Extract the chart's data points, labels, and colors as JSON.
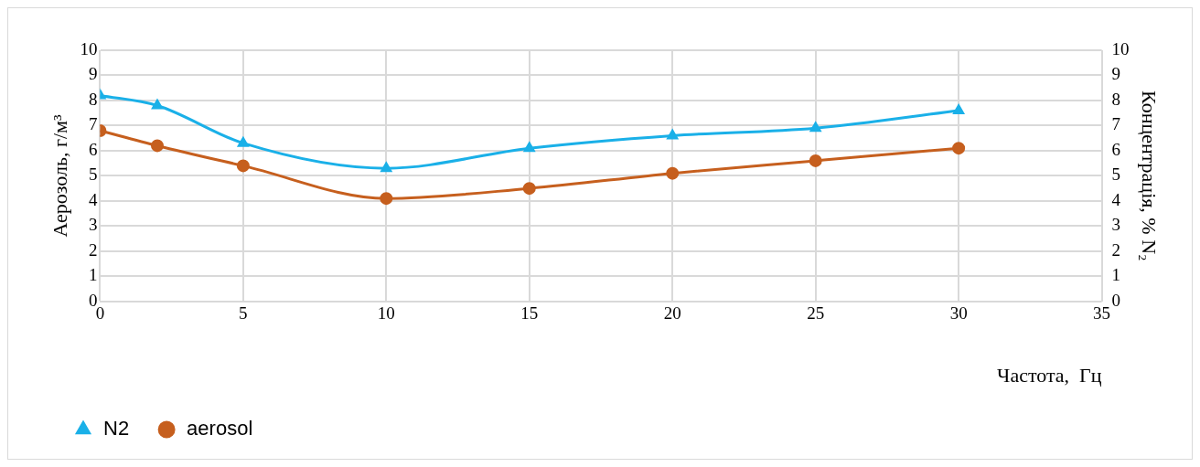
{
  "chart_data": {
    "type": "line",
    "xlabel": "Частота,  Гц",
    "ylabel": "Аерозоль, г/м³",
    "y2label": "Концентрація, % N₂",
    "x": [
      0,
      2,
      5,
      10,
      15,
      20,
      25,
      30
    ],
    "series": [
      {
        "name": "N2",
        "color": "#1ab0e8",
        "marker": "triangle",
        "values": [
          8.2,
          7.8,
          6.3,
          5.3,
          6.1,
          6.6,
          6.9,
          7.6
        ]
      },
      {
        "name": "aerosol",
        "color": "#c65f1e",
        "marker": "circle",
        "values": [
          6.8,
          6.2,
          5.4,
          4.1,
          4.5,
          5.1,
          5.6,
          6.1
        ]
      }
    ],
    "xlim": [
      0,
      35
    ],
    "xticks": [
      0,
      5,
      10,
      15,
      20,
      25,
      30,
      35
    ],
    "ylim": [
      0,
      10
    ],
    "yticks": [
      0,
      1,
      2,
      3,
      4,
      5,
      6,
      7,
      8,
      9,
      10
    ],
    "y2lim": [
      0,
      10
    ],
    "y2ticks": [
      0,
      1,
      2,
      3,
      4,
      5,
      6,
      7,
      8,
      9,
      10
    ],
    "grid": true,
    "legend": "bottom left",
    "line_style": "solid"
  }
}
